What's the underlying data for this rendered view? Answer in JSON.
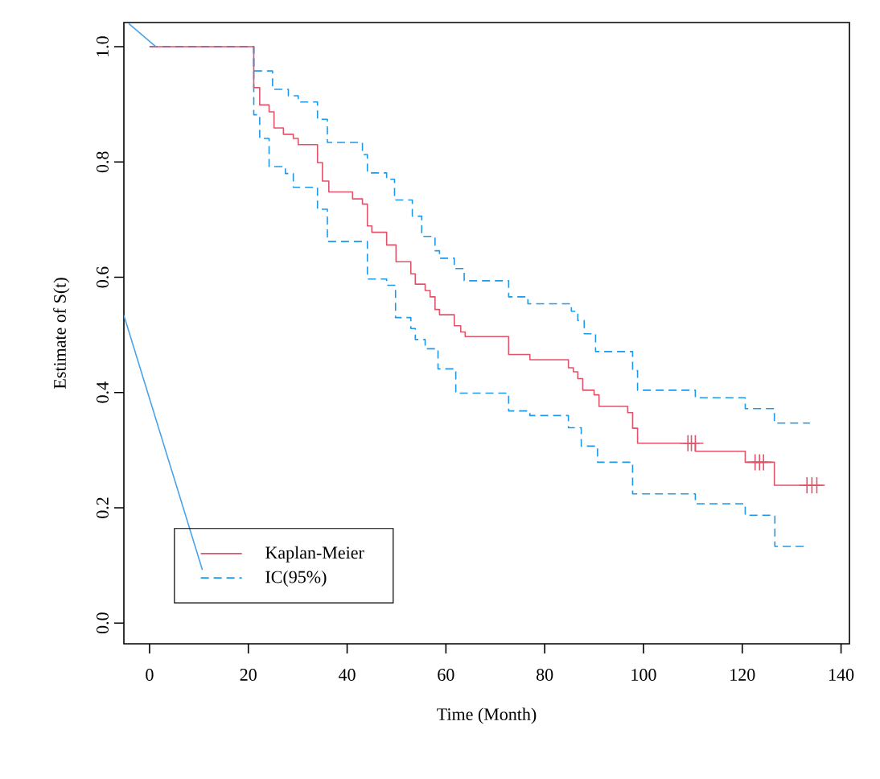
{
  "chart_data": {
    "type": "step",
    "xlabel": "Time  (Month)",
    "ylabel": "Estimate of S(t)",
    "xlim": [
      -5.2,
      141.7
    ],
    "ylim": [
      -0.036,
      1.042
    ],
    "xticks": [
      0,
      20,
      40,
      60,
      80,
      100,
      120,
      140
    ],
    "yticks": [
      {
        "value": 0,
        "label": "0.0"
      },
      {
        "value": 0.2,
        "label": "0.2"
      },
      {
        "value": 0.4,
        "label": "0.4"
      },
      {
        "value": 0.6,
        "label": "0.6"
      },
      {
        "value": 0.8,
        "label": "0.8"
      },
      {
        "value": 1.0,
        "label": "1.0"
      }
    ],
    "grid": false,
    "legend": "bottom left",
    "series": [
      {
        "name": "Kaplan-Meier",
        "color": "#df536b",
        "line_style": "solid",
        "x": [
          0,
          21.1,
          22.3,
          24.2,
          25.2,
          27.1,
          29.1,
          30.1,
          34.0,
          35.0,
          36.3,
          41.1,
          43.1,
          44.1,
          45.0,
          48.0,
          49.9,
          52.9,
          53.8,
          55.8,
          56.8,
          57.8,
          58.7,
          61.7,
          63.0,
          63.9,
          72.7,
          77.0,
          84.8,
          85.8,
          86.7,
          87.7,
          90.0,
          91.0,
          96.8,
          97.8,
          98.8,
          110.5,
          120.6,
          126.5,
          136.4
        ],
        "values": [
          1.0,
          0.929,
          0.899,
          0.887,
          0.859,
          0.848,
          0.841,
          0.83,
          0.799,
          0.767,
          0.748,
          0.736,
          0.727,
          0.689,
          0.678,
          0.656,
          0.627,
          0.606,
          0.588,
          0.577,
          0.566,
          0.544,
          0.535,
          0.516,
          0.505,
          0.497,
          0.466,
          0.457,
          0.443,
          0.436,
          0.424,
          0.404,
          0.396,
          0.376,
          0.365,
          0.338,
          0.312,
          0.298,
          0.279,
          0.239,
          0.239
        ]
      },
      {
        "color": "#df536b",
        "type": "scatter",
        "marker": "cross",
        "x": [
          109.0,
          109.7,
          110.5,
          122.6,
          123.5,
          124.3,
          133.1,
          134.1,
          135.1
        ],
        "values": [
          0.312,
          0.312,
          0.312,
          0.279,
          0.279,
          0.279,
          0.239,
          0.239,
          0.239
        ]
      },
      {
        "name": "IC(95%)",
        "color": "#2297e6",
        "line_style": "dashed",
        "x": [
          0,
          21.1,
          24.9,
          28.1,
          30.1,
          34.0,
          36.0,
          43.1,
          44.1,
          48.0,
          49.6,
          53.2,
          55.1,
          57.8,
          58.7,
          61.7,
          63.7,
          72.7,
          76.6,
          85.4,
          86.7,
          88.0,
          90.3,
          97.8,
          98.8,
          110.5,
          120.6,
          126.5,
          133.7
        ],
        "values": [
          1.0,
          0.958,
          0.926,
          0.915,
          0.904,
          0.874,
          0.834,
          0.813,
          0.781,
          0.77,
          0.734,
          0.706,
          0.671,
          0.646,
          0.633,
          0.615,
          0.594,
          0.566,
          0.554,
          0.541,
          0.525,
          0.502,
          0.471,
          0.438,
          0.404,
          0.391,
          0.372,
          0.347,
          0.347
        ]
      },
      {
        "color": "#2297e6",
        "line_style": "dashed",
        "x": [
          0,
          21.1,
          22.3,
          24.2,
          27.5,
          29.1,
          34.0,
          36.0,
          44.1,
          48.0,
          49.8,
          52.9,
          53.8,
          55.8,
          58.4,
          62.0,
          72.7,
          77.0,
          84.8,
          87.4,
          90.7,
          97.8,
          110.5,
          120.6,
          126.6,
          133.0
        ],
        "values": [
          1.0,
          0.882,
          0.841,
          0.792,
          0.78,
          0.756,
          0.718,
          0.662,
          0.597,
          0.586,
          0.53,
          0.511,
          0.492,
          0.476,
          0.441,
          0.399,
          0.368,
          0.36,
          0.339,
          0.307,
          0.279,
          0.224,
          0.207,
          0.187,
          0.133,
          0.133
        ]
      },
      {
        "color": "#4aa3e8",
        "type": "line",
        "line_style": "solid",
        "x": [
          -4.2,
          1.3
        ],
        "values": [
          1.04,
          1.0
        ]
      },
      {
        "color": "#4aa3e8",
        "type": "line",
        "line_style": "solid",
        "x": [
          -5.2,
          10.7
        ],
        "values": [
          0.534,
          0.092
        ]
      }
    ]
  }
}
